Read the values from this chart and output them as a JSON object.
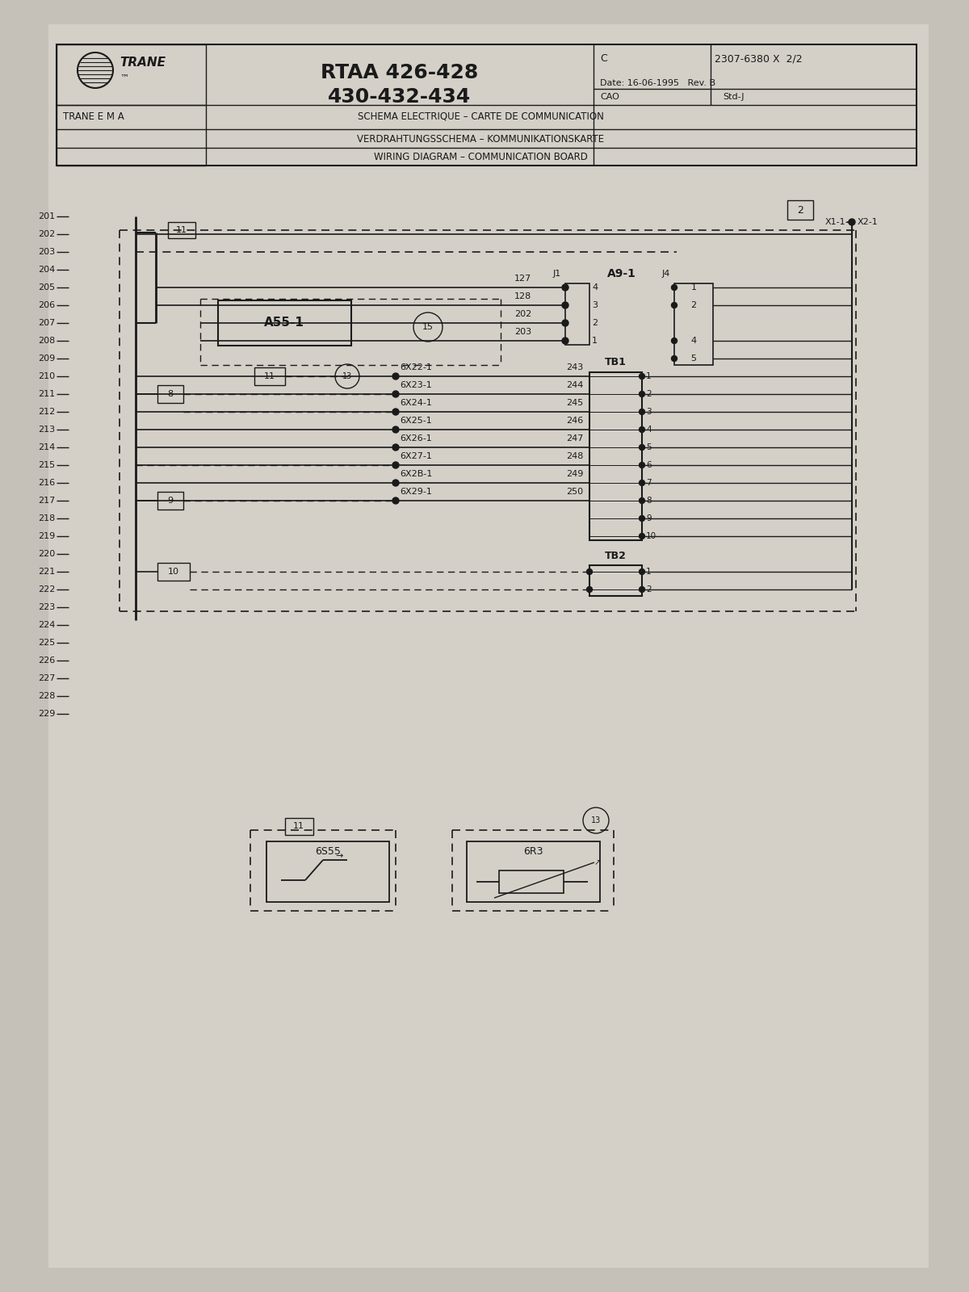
{
  "bg_color": "#c5c1b9",
  "paper_color": "#d4d0c8",
  "line_color": "#1a1a1a",
  "title_box": {
    "model1": "RTAA 426-428",
    "model2": "430-432-434",
    "company": "TRANE",
    "tm": "™",
    "sub_company": "TRANE E M A",
    "doc_num": "C  2307-6380 X  2/2",
    "date": "Date: 16-06-1995   Rev. B",
    "cao": "CAO",
    "std": "Std-J",
    "schema1": "SCHEMA ELECTRIQUE – CARTE DE COMMUNICATION",
    "schema2": "VERDRAHTUNGSSCHEMA – KOMMUNIKATIONSKARTE",
    "schema3": "WIRING DIAGRAM – COMMUNICATION BOARD"
  },
  "wire_numbers": [
    201,
    202,
    203,
    204,
    205,
    206,
    207,
    208,
    209,
    210,
    211,
    212,
    213,
    214,
    215,
    216,
    217,
    218,
    219,
    220,
    221,
    222,
    223,
    224,
    225,
    226,
    227,
    228,
    229
  ],
  "tb1_wires": [
    "6X22-1",
    "6X23-1",
    "6X24-1",
    "6X25-1",
    "6X26-1",
    "6X27-1",
    "6X2B-1",
    "6X29-1"
  ],
  "tb1_nums": [
    "243",
    "244",
    "245",
    "246",
    "247",
    "248",
    "249",
    "250"
  ],
  "a55_wires_nums": [
    "127",
    "128",
    "202",
    "203"
  ],
  "a9_label": "A9-1",
  "a55_label": "A55-1"
}
